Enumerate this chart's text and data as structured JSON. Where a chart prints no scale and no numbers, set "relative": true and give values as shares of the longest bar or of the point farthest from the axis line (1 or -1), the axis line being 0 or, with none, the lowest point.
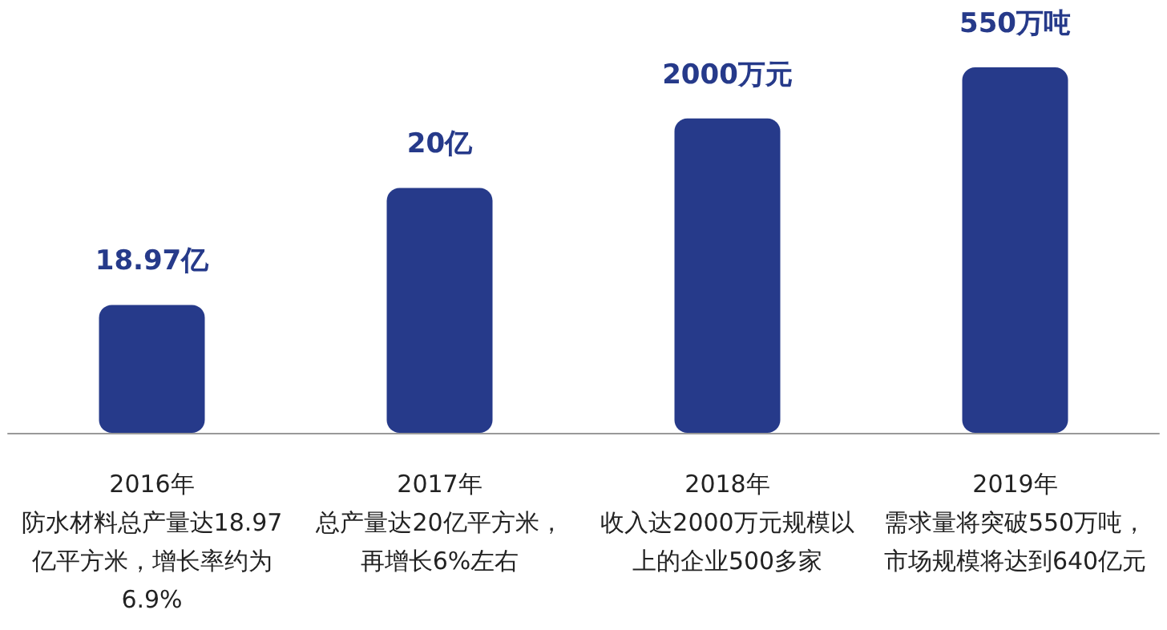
{
  "chart_data": {
    "type": "bar",
    "relative": true,
    "categories": [
      "2016年",
      "2017年",
      "2018年",
      "2019年"
    ],
    "values": [
      0.35,
      0.67,
      0.86,
      1
    ],
    "color": "#263a8a",
    "annotations": [
      {
        "text": "18.97亿",
        "x": "2016年",
        "y": 0.35
      },
      {
        "text": "20亿",
        "x": "2017年",
        "y": 0.67
      },
      {
        "text": "2000万元",
        "x": "2018年",
        "y": 0.86
      },
      {
        "text": "550万吨",
        "x": "2019年",
        "y": 1
      },
      "防水材料总产量达18.97亿平方米，增长率约为6.9%",
      "总产量达20亿平方米，再增长6%左右",
      "收入达2000万元规模以上的企业500多家",
      "需求量将突破550万吨，市场规模将达到640亿元"
    ]
  }
}
